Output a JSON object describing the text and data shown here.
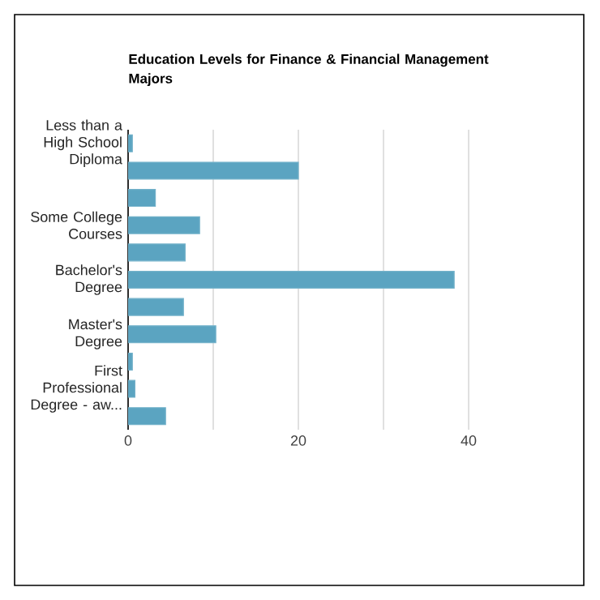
{
  "chart_data": {
    "type": "bar",
    "orientation": "horizontal",
    "title": "Education Levels for Finance & Financial Management Majors",
    "categories": [
      "Less than a High School Diploma",
      null,
      null,
      "Some College Courses",
      null,
      "Bachelor's Degree",
      null,
      "Master's Degree",
      null,
      "First Professional Degree - aw...",
      null
    ],
    "values": [
      0.5,
      20,
      3.2,
      8.4,
      6.7,
      38.3,
      6.5,
      10.3,
      0.5,
      0.8,
      4.4
    ],
    "color": "#5ba4c1",
    "xlim": [
      0,
      40
    ],
    "xticks": [
      0,
      {
        "value": 10,
        "label": null
      },
      20,
      {
        "value": 30,
        "label": null
      },
      40
    ],
    "grid": "x"
  }
}
